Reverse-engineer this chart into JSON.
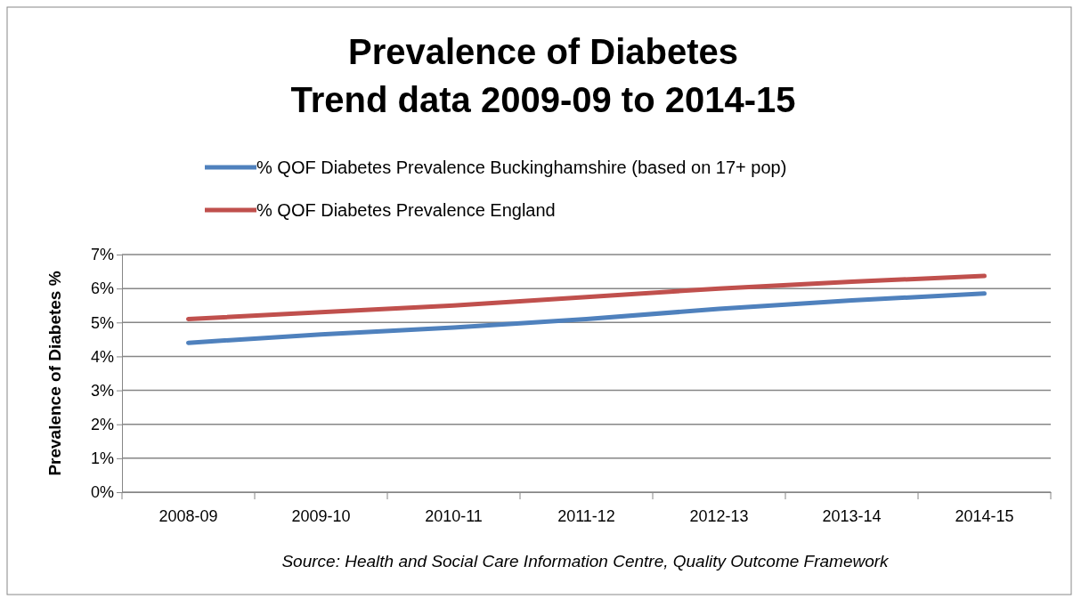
{
  "chart_data": {
    "type": "line",
    "title": "Prevalence of Diabetes\nTrend data 2009-09 to 2014-15",
    "ylabel": "Prevalence of Diabetes %",
    "categories": [
      "2008-09",
      "2009-10",
      "2010-11",
      "2011-12",
      "2012-13",
      "2013-14",
      "2014-15"
    ],
    "series": [
      {
        "name": "% QOF Diabetes Prevalence Buckinghamshire (based on 17+ pop)",
        "color": "#4f81bd",
        "values": [
          4.4,
          4.65,
          4.85,
          5.1,
          5.4,
          5.65,
          5.85
        ]
      },
      {
        "name": "% QOF Diabetes Prevalence England",
        "color": "#c0504d",
        "values": [
          5.1,
          5.3,
          5.5,
          5.75,
          6.0,
          6.2,
          6.37
        ]
      }
    ],
    "ylim": [
      0,
      7
    ],
    "yticks": [
      {
        "value": 0,
        "label": "0%"
      },
      {
        "value": 1,
        "label": "1%"
      },
      {
        "value": 2,
        "label": "2%"
      },
      {
        "value": 3,
        "label": "3%"
      },
      {
        "value": 4,
        "label": "4%"
      },
      {
        "value": 5,
        "label": "5%"
      },
      {
        "value": 6,
        "label": "6%"
      },
      {
        "value": 7,
        "label": "7%"
      }
    ],
    "grid": "y",
    "legend": "top",
    "marker": "none",
    "line_style": "solid",
    "annotations": [
      "Source: Health and Social Care Information Centre, Quality Outcome Framework"
    ]
  }
}
